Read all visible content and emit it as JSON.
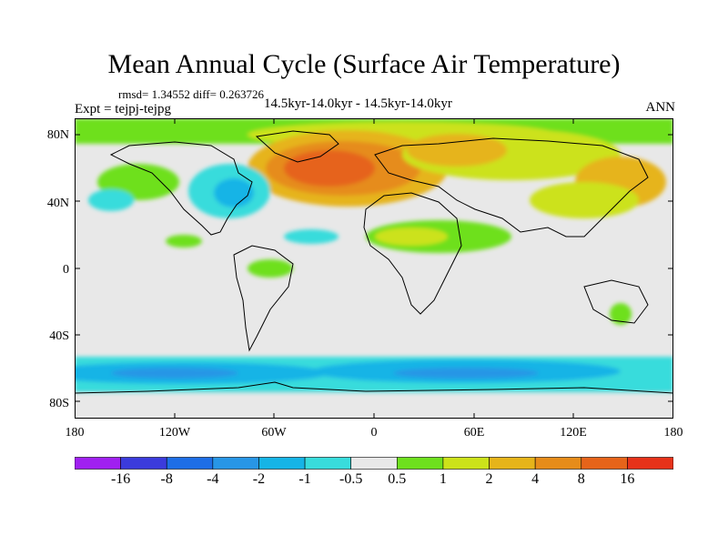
{
  "header": {
    "title": "Mean Annual Cycle (Surface Air Temperature)",
    "stats": "rmsd= 1.34552 diff= 0.263726",
    "experiment": "Expt = tejpj-tejpg",
    "period": "14.5kyr-14.0kyr - 14.5kyr-14.0kyr",
    "season": "ANN"
  },
  "axes": {
    "y_ticks": [
      "80N",
      "40N",
      "0",
      "40S",
      "80S"
    ],
    "x_ticks": [
      "180",
      "120W",
      "60W",
      "0",
      "60E",
      "120E",
      "180"
    ]
  },
  "colorbar": {
    "colors": [
      "#a020f0",
      "#3b3bdc",
      "#1e6ee6",
      "#2896e6",
      "#16b4e6",
      "#38dcdc",
      "#e8e8e8",
      "#6ee01e",
      "#cce21a",
      "#e6b41a",
      "#e68c1a",
      "#e6641a",
      "#e6321a"
    ],
    "labels": [
      "-16",
      "-8",
      "-4",
      "-2",
      "-1",
      "-0.5",
      "0.5",
      "1",
      "2",
      "4",
      "8",
      "16"
    ]
  },
  "chart_data": {
    "type": "heatmap",
    "title": "Mean Annual Cycle (Surface Air Temperature)",
    "variable": "Surface Air Temperature difference",
    "lon_range": [
      -180,
      180
    ],
    "lat_range": [
      -90,
      90
    ],
    "contour_levels": [
      -16,
      -8,
      -4,
      -2,
      -1,
      -0.5,
      0.5,
      1,
      2,
      4,
      8,
      16
    ]
  }
}
